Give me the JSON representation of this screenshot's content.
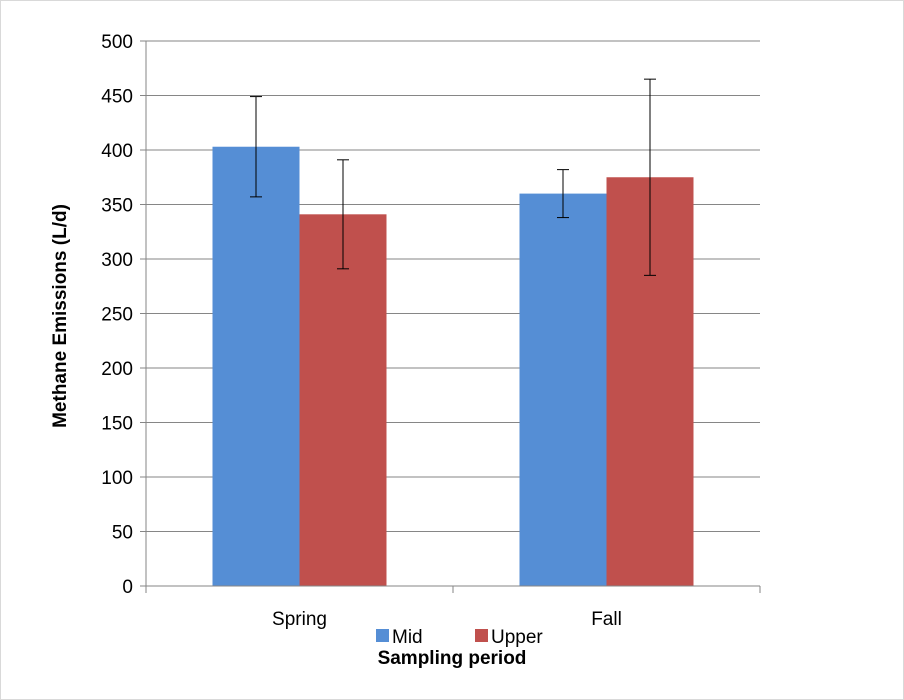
{
  "chart_data": {
    "type": "bar",
    "categories": [
      "Spring",
      "Fall"
    ],
    "series": [
      {
        "name": "Mid",
        "values": [
          403,
          360
        ],
        "errors": [
          46,
          22
        ],
        "color": "#558ed5"
      },
      {
        "name": "Upper",
        "values": [
          341,
          375
        ],
        "errors": [
          50,
          90
        ],
        "color": "#c0504d"
      }
    ],
    "xlabel": "Sampling period",
    "ylabel": "Methane Emissions (L/d)",
    "ylim": [
      0,
      500
    ],
    "yticks": [
      0,
      50,
      100,
      150,
      200,
      250,
      300,
      350,
      400,
      450,
      500
    ],
    "grid": true,
    "legend": "bottom-center",
    "gridline_color": "#868686",
    "axis_color": "#868686"
  }
}
